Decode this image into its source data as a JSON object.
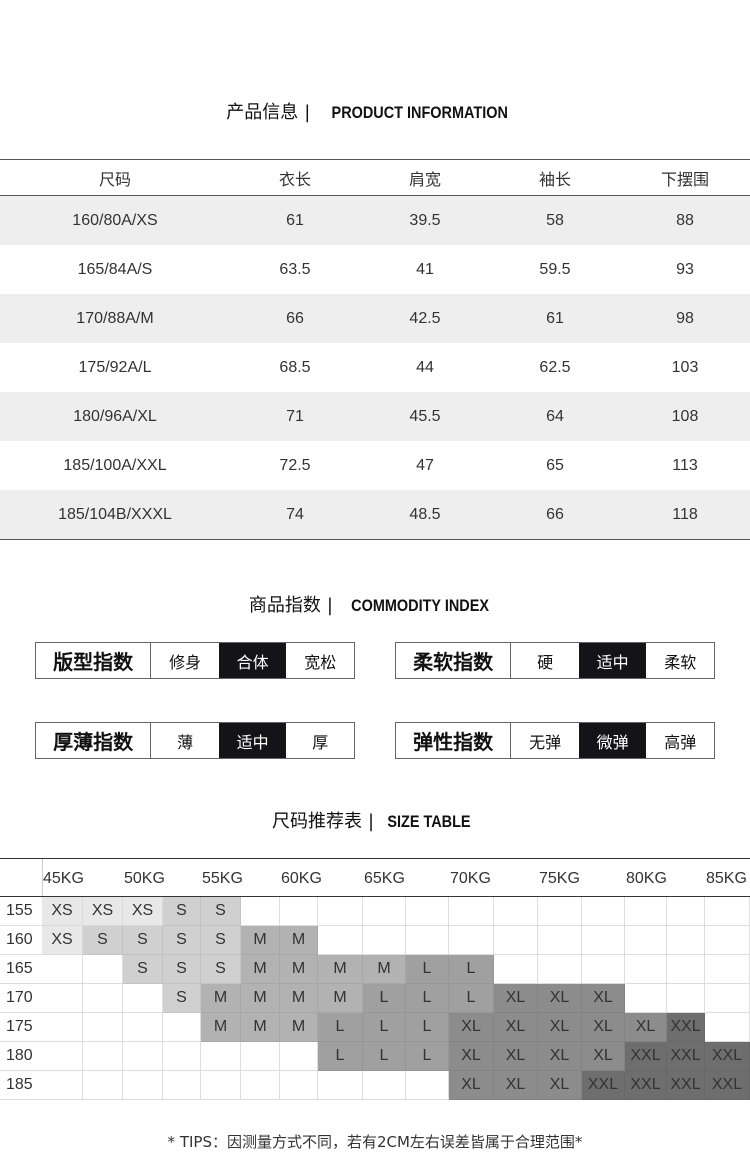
{
  "product_info": {
    "title_cn": "产品信息",
    "sep": "|",
    "title_en": "PRODUCT INFORMATION",
    "headers": [
      "尺码",
      "衣长",
      "肩宽",
      "袖长",
      "下摆围"
    ],
    "rows": [
      [
        "160/80A/XS",
        "61",
        "39.5",
        "58",
        "88"
      ],
      [
        "165/84A/S",
        "63.5",
        "41",
        "59.5",
        "93"
      ],
      [
        "170/88A/M",
        "66",
        "42.5",
        "61",
        "98"
      ],
      [
        "175/92A/L",
        "68.5",
        "44",
        "62.5",
        "103"
      ],
      [
        "180/96A/XL",
        "71",
        "45.5",
        "64",
        "108"
      ],
      [
        "185/100A/XXL",
        "72.5",
        "47",
        "65",
        "113"
      ],
      [
        "185/104B/XXXL",
        "74",
        "48.5",
        "66",
        "118"
      ]
    ]
  },
  "commodity_index": {
    "title_cn": "商品指数",
    "sep": "|",
    "title_en": "COMMODITY INDEX",
    "items": [
      {
        "label": "版型指数",
        "options": [
          "修身",
          "合体",
          "宽松"
        ],
        "selected": 1
      },
      {
        "label": "柔软指数",
        "options": [
          "硬",
          "适中",
          "柔软"
        ],
        "selected": 1
      },
      {
        "label": "厚薄指数",
        "options": [
          "薄",
          "适中",
          "厚"
        ],
        "selected": 1
      },
      {
        "label": "弹性指数",
        "options": [
          "无弹",
          "微弹",
          "高弹"
        ],
        "selected": 1
      }
    ]
  },
  "size_table": {
    "title_cn": "尺码推荐表",
    "sep": "|",
    "title_en": "SIZE TABLE",
    "weights": [
      "45KG",
      "50KG",
      "55KG",
      "60KG",
      "65KG",
      "70KG",
      "75KG",
      "80KG",
      "85KG"
    ],
    "heights": [
      "155",
      "160",
      "165",
      "170",
      "175",
      "180",
      "185"
    ],
    "grid": [
      [
        "XS",
        "XS",
        "XS",
        "S",
        "S",
        "",
        "",
        "",
        "",
        "",
        "",
        "",
        "",
        "",
        "",
        "",
        ""
      ],
      [
        "XS",
        "S",
        "S",
        "S",
        "S",
        "M",
        "M",
        "",
        "",
        "",
        "",
        "",
        "",
        "",
        "",
        "",
        ""
      ],
      [
        "",
        "",
        "S",
        "S",
        "S",
        "M",
        "M",
        "M",
        "M",
        "L",
        "L",
        "",
        "",
        "",
        "",
        "",
        ""
      ],
      [
        "",
        "",
        "",
        "S",
        "M",
        "M",
        "M",
        "M",
        "L",
        "L",
        "L",
        "XL",
        "XL",
        "XL",
        "",
        "",
        ""
      ],
      [
        "",
        "",
        "",
        "",
        "M",
        "M",
        "M",
        "L",
        "L",
        "L",
        "XL",
        "XL",
        "XL",
        "XL",
        "XL",
        "XXL",
        ""
      ],
      [
        "",
        "",
        "",
        "",
        "",
        "",
        "",
        "L",
        "L",
        "L",
        "XL",
        "XL",
        "XL",
        "XL",
        "XXL",
        "XXL",
        "XXL"
      ],
      [
        "",
        "",
        "",
        "",
        "",
        "",
        "",
        "",
        "",
        "",
        "XL",
        "XL",
        "XL",
        "XXL",
        "XXL",
        "XXL",
        "XXL"
      ]
    ],
    "colors": {
      "XS": "#e8e8e8",
      "S": "#d0d0d0",
      "M": "#b2b2b2",
      "L": "#a0a0a0",
      "XL": "#8c8c8c",
      "XXL": "#6e6e6e"
    }
  },
  "tips": "* TIPS：因测量方式不同，若有2CM左右误差皆属于合理范围*"
}
